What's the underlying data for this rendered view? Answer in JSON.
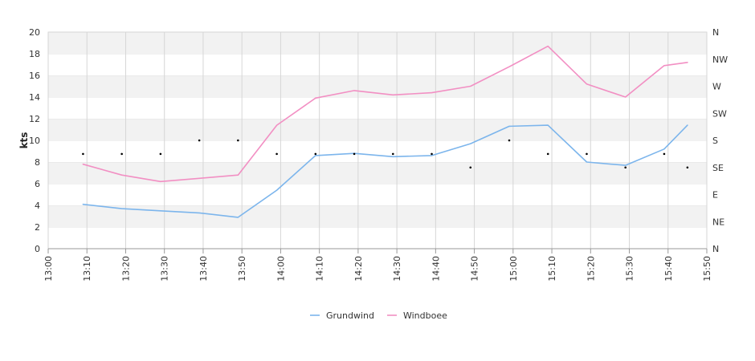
{
  "chart_data": {
    "type": "line",
    "ylabel": "kts",
    "ylim": [
      0,
      20
    ],
    "y_ticks": [
      "0",
      "2",
      "4",
      "6",
      "8",
      "10",
      "12",
      "14",
      "16",
      "18",
      "20"
    ],
    "x_ticks": [
      "13:00",
      "13:10",
      "13:20",
      "13:30",
      "13:40",
      "13:50",
      "14:00",
      "14:10",
      "14:20",
      "14:30",
      "14:40",
      "14:50",
      "15:00",
      "15:10",
      "15:20",
      "15:30",
      "15:40",
      "15:50"
    ],
    "direction_axis_labels": [
      "N",
      "NE",
      "E",
      "SE",
      "S",
      "SW",
      "W",
      "NW",
      "N"
    ],
    "grid": true,
    "legend_position": "bottom",
    "x": [
      "13:09",
      "13:19",
      "13:29",
      "13:39",
      "13:49",
      "13:59",
      "14:09",
      "14:19",
      "14:29",
      "14:39",
      "14:49",
      "14:59",
      "15:09",
      "15:19",
      "15:29",
      "15:39",
      "15:45"
    ],
    "series": [
      {
        "name": "Grundwind",
        "color": "#7cb5ec",
        "values": [
          4.1,
          3.7,
          3.5,
          3.3,
          2.9,
          5.4,
          8.6,
          8.8,
          8.5,
          8.6,
          9.7,
          11.3,
          11.4,
          8.0,
          7.7,
          9.2,
          11.4
        ]
      },
      {
        "name": "Windboee",
        "color": "#f28fc3",
        "values": [
          7.8,
          6.8,
          6.2,
          6.5,
          6.8,
          11.4,
          13.9,
          14.6,
          14.2,
          14.4,
          15.0,
          16.8,
          18.7,
          15.2,
          14.0,
          16.9,
          17.2
        ]
      }
    ],
    "direction_points": {
      "x": [
        "13:09",
        "13:19",
        "13:29",
        "13:39",
        "13:49",
        "13:59",
        "14:09",
        "14:19",
        "14:29",
        "14:39",
        "14:49",
        "14:59",
        "15:09",
        "15:19",
        "15:29",
        "15:39",
        "15:45"
      ],
      "values": [
        "SSE",
        "SSE",
        "SSE",
        "S",
        "S",
        "SSE",
        "SSE",
        "SSE",
        "SSE",
        "SSE",
        "SE",
        "S",
        "SSE",
        "SSE",
        "SE",
        "SSE",
        "SE"
      ]
    }
  }
}
